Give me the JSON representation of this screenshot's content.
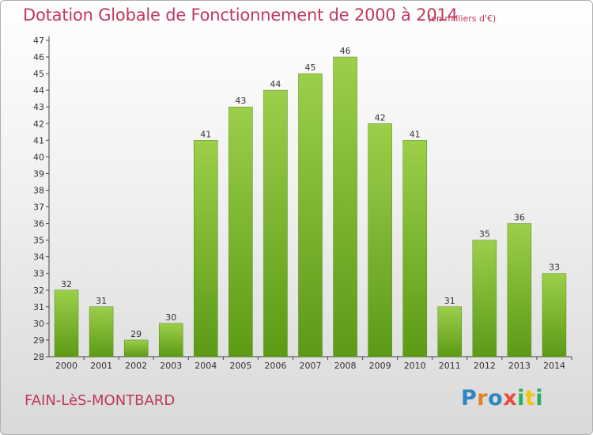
{
  "title": "Dotation Globale de Fonctionnement de 2000 à 2014",
  "subtitle": "(en milliers d'€)",
  "commune": "FAIN-LèS-MONTBARD",
  "logo": {
    "p": "P",
    "r": "r",
    "o": "o",
    "x": "x",
    "i1": "i",
    "t": "t",
    "i2": "i"
  },
  "colors": {
    "title": "#c0375a",
    "bar_top": "#9ccf4a",
    "bar_bottom": "#5c9a16"
  },
  "chart_data": {
    "type": "bar",
    "title": "Dotation Globale de Fonctionnement de 2000 à 2014",
    "subtitle": "(en milliers d'€)",
    "categories": [
      "2000",
      "2001",
      "2002",
      "2003",
      "2004",
      "2005",
      "2006",
      "2007",
      "2008",
      "2009",
      "2010",
      "2011",
      "2012",
      "2013",
      "2014"
    ],
    "values": [
      32,
      31,
      29,
      30,
      41,
      43,
      44,
      45,
      46,
      42,
      41,
      31,
      35,
      36,
      33
    ],
    "ylim": [
      28,
      47
    ],
    "yticks": [
      28,
      29,
      30,
      31,
      32,
      33,
      34,
      35,
      36,
      37,
      38,
      39,
      40,
      41,
      42,
      43,
      44,
      45,
      46,
      47
    ],
    "grid": false,
    "data_labels": true
  }
}
